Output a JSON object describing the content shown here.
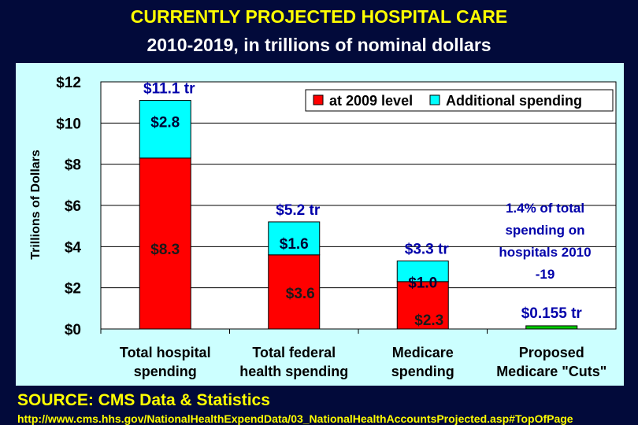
{
  "chart_data": {
    "type": "bar",
    "stacked": true,
    "title": "CURRENTLY PROJECTED HOSPITAL CARE",
    "subtitle": "2010-2019, in trillions of nominal dollars",
    "ylabel": "Trillions of Dollars",
    "ylim": [
      0,
      12
    ],
    "yticks": [
      "$0",
      "$2",
      "$4",
      "$6",
      "$8",
      "$10",
      "$12"
    ],
    "grid": true,
    "categories": [
      [
        "Total hospital",
        "spending"
      ],
      [
        "Total federal",
        "health spending"
      ],
      [
        "Medicare",
        "spending"
      ],
      [
        "Proposed",
        "Medicare \"Cuts\""
      ]
    ],
    "series": [
      {
        "name": "at 2009 level",
        "color": "#ff0000",
        "values": [
          8.3,
          3.6,
          2.3,
          0.155
        ],
        "labels": [
          "$8.3",
          "$3.6",
          "$2.3",
          ""
        ]
      },
      {
        "name": "Additional spending",
        "color": "#00ffff",
        "values": [
          2.8,
          1.6,
          1.0,
          0
        ],
        "labels": [
          "$2.8",
          "$1.6",
          "$1.0",
          ""
        ]
      }
    ],
    "bar_colors_override": {
      "3": "#00cc00"
    },
    "totals": [
      "$11.1 tr",
      "$5.2 tr",
      "$3.3 tr",
      "$0.155 tr"
    ],
    "annotation": [
      "1.4% of total",
      "spending on",
      "hospitals 2010",
      "-19"
    ],
    "legend_placement": "top-right"
  },
  "source": "SOURCE: CMS Data & Statistics",
  "url": "http://www.cms.hhs.gov/NationalHealthExpendData/03_NationalHealthAccountsProjected.asp#TopOfPage"
}
